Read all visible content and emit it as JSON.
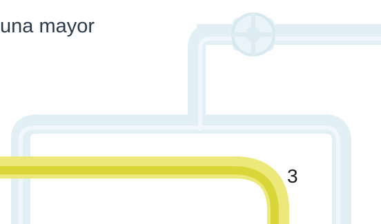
{
  "slide": {
    "heading_text": "una mayor",
    "step_number": "3"
  },
  "colors": {
    "light_pipe": "#e2eff4",
    "light_pipe_inner": "#f1f7fa",
    "yellow_pipe_outer": "#ece87a",
    "yellow_pipe_inner": "#d9d63a",
    "text": "#2b3a4a"
  },
  "icons": {
    "valve": "valve-icon",
    "pipeline": "pipeline-decoration"
  }
}
